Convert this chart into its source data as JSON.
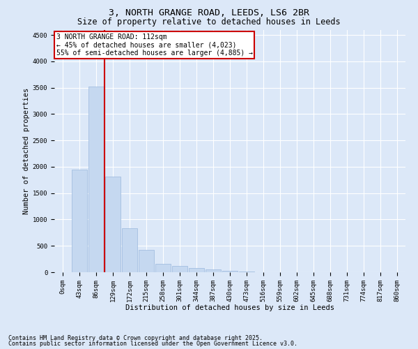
{
  "title_line1": "3, NORTH GRANGE ROAD, LEEDS, LS6 2BR",
  "title_line2": "Size of property relative to detached houses in Leeds",
  "xlabel": "Distribution of detached houses by size in Leeds",
  "ylabel": "Number of detached properties",
  "bar_color": "#c5d8f0",
  "bar_edge_color": "#9ab8dd",
  "background_color": "#dce8f8",
  "grid_color": "#ffffff",
  "vline_color": "#cc0000",
  "vline_x_index": 2.5,
  "annotation_box_text": "3 NORTH GRANGE ROAD: 112sqm\n← 45% of detached houses are smaller (4,023)\n55% of semi-detached houses are larger (4,885) →",
  "annotation_box_color": "#cc0000",
  "categories": [
    "0sqm",
    "43sqm",
    "86sqm",
    "129sqm",
    "172sqm",
    "215sqm",
    "258sqm",
    "301sqm",
    "344sqm",
    "387sqm",
    "430sqm",
    "473sqm",
    "516sqm",
    "559sqm",
    "602sqm",
    "645sqm",
    "688sqm",
    "731sqm",
    "774sqm",
    "817sqm",
    "860sqm"
  ],
  "values": [
    5,
    1950,
    3520,
    1820,
    840,
    420,
    165,
    115,
    80,
    50,
    25,
    8,
    3,
    1,
    0,
    0,
    0,
    0,
    0,
    0,
    0
  ],
  "ylim": [
    0,
    4600
  ],
  "yticks": [
    0,
    500,
    1000,
    1500,
    2000,
    2500,
    3000,
    3500,
    4000,
    4500
  ],
  "footnote_line1": "Contains HM Land Registry data © Crown copyright and database right 2025.",
  "footnote_line2": "Contains public sector information licensed under the Open Government Licence v3.0.",
  "title_fontsize": 9.5,
  "subtitle_fontsize": 8.5,
  "axis_label_fontsize": 7.5,
  "tick_fontsize": 6.5,
  "annotation_fontsize": 7,
  "footnote_fontsize": 6
}
